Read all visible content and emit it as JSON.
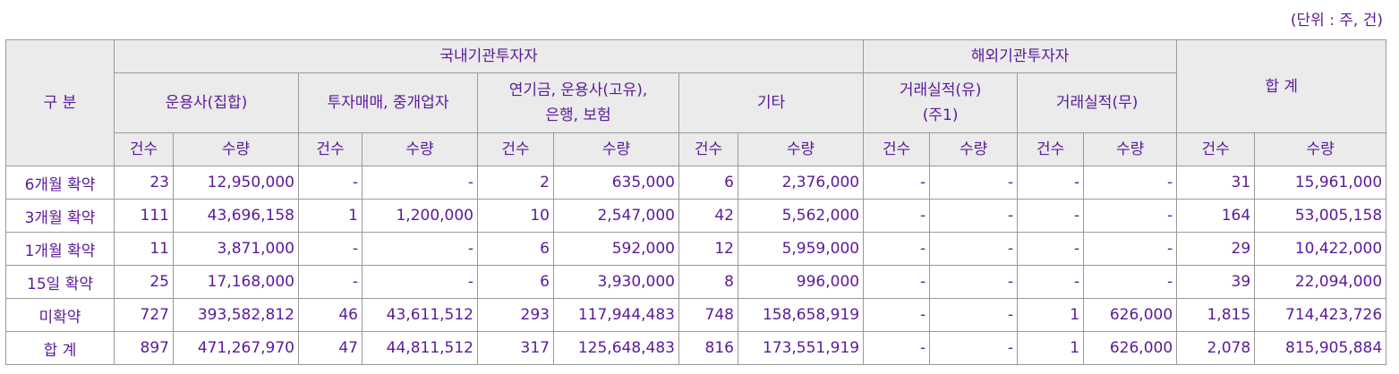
{
  "unit_label": "(단위 : 주, 건)",
  "header": {
    "category": "구 분",
    "domestic": "국내기관투자자",
    "foreign": "해외기관투자자",
    "total": "합 계",
    "sub": {
      "asset_mgmt_collective": "운용사(집합)",
      "dealer_broker": "투자매매, 중개업자",
      "pension_line1": "연기금, 운용사(고유),",
      "pension_line2": "은행, 보험",
      "other": "기타",
      "trade_yes_line1": "거래실적(유)",
      "trade_yes_line2": "(주1)",
      "trade_no": "거래실적(무)"
    },
    "count": "건수",
    "quantity": "수량"
  },
  "rows": [
    {
      "label": "6개월 확약",
      "v": [
        "23",
        "12,950,000",
        "-",
        "-",
        "2",
        "635,000",
        "6",
        "2,376,000",
        "-",
        "-",
        "-",
        "-",
        "31",
        "15,961,000"
      ]
    },
    {
      "label": "3개월 확약",
      "v": [
        "111",
        "43,696,158",
        "1",
        "1,200,000",
        "10",
        "2,547,000",
        "42",
        "5,562,000",
        "-",
        "-",
        "-",
        "-",
        "164",
        "53,005,158"
      ]
    },
    {
      "label": "1개월 확약",
      "v": [
        "11",
        "3,871,000",
        "-",
        "-",
        "6",
        "592,000",
        "12",
        "5,959,000",
        "-",
        "-",
        "-",
        "-",
        "29",
        "10,422,000"
      ]
    },
    {
      "label": "15일 확약",
      "v": [
        "25",
        "17,168,000",
        "-",
        "-",
        "6",
        "3,930,000",
        "8",
        "996,000",
        "-",
        "-",
        "-",
        "-",
        "39",
        "22,094,000"
      ]
    },
    {
      "label": "미확약",
      "v": [
        "727",
        "393,582,812",
        "46",
        "43,611,512",
        "293",
        "117,944,483",
        "748",
        "158,658,919",
        "-",
        "-",
        "1",
        "626,000",
        "1,815",
        "714,423,726"
      ]
    },
    {
      "label": "합 계",
      "v": [
        "897",
        "471,267,970",
        "47",
        "44,811,512",
        "317",
        "125,648,483",
        "816",
        "173,551,919",
        "-",
        "-",
        "1",
        "626,000",
        "2,078",
        "815,905,884"
      ]
    }
  ]
}
